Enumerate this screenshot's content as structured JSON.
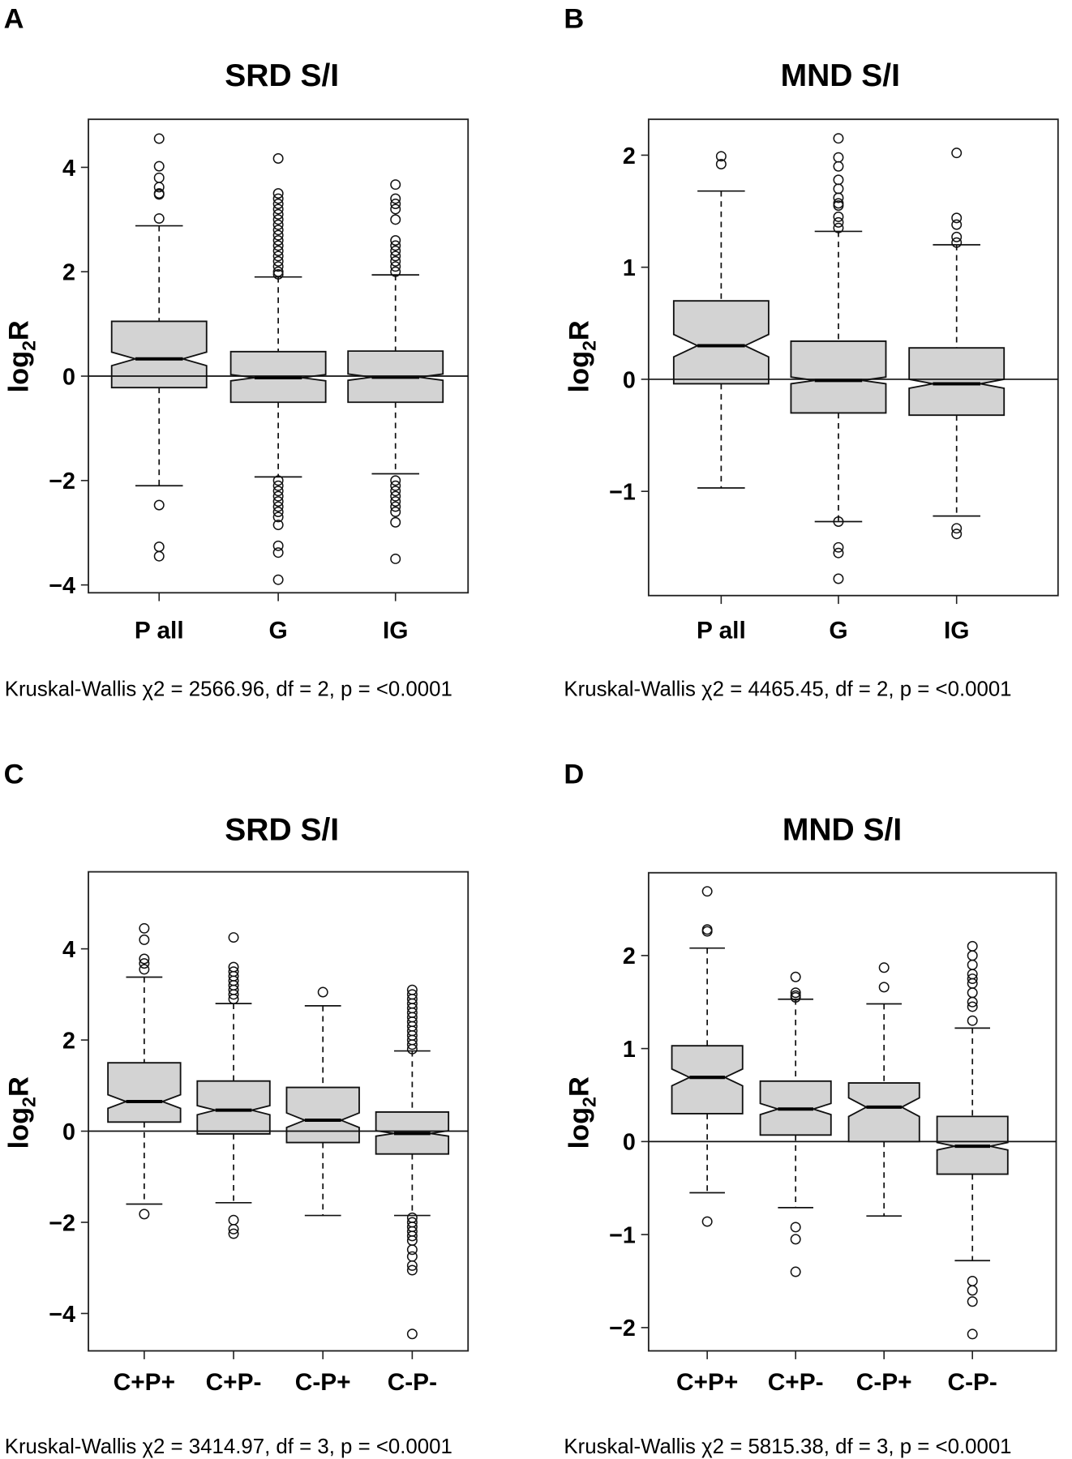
{
  "chart_data": [
    {
      "panel": "A",
      "type": "boxplot",
      "title": "SRD S/I",
      "ylabel": {
        "main": "log",
        "sub": "2",
        "end": "R"
      },
      "ylim": [
        -4.15,
        4.92
      ],
      "yticks": [
        4,
        2,
        0,
        -2,
        -4
      ],
      "ytick_labels": [
        "4",
        "2",
        "0",
        "−2",
        "−4"
      ],
      "hline": 0,
      "notched": true,
      "box_fill": "#d3d3d3",
      "stats": "Kruskal-Wallis  χ2 = 2566.96, df = 2, p = <0.0001",
      "categories": [
        "P all",
        "G",
        "IG"
      ],
      "boxes": [
        {
          "whisker_low": -2.1,
          "q1": -0.22,
          "median": 0.33,
          "q3": 1.05,
          "whisker_high": 2.88,
          "notch": [
            0.2,
            0.46
          ],
          "outliers": [
            4.55,
            4.02,
            3.8,
            3.62,
            3.5,
            3.48,
            3.02,
            -2.47,
            -3.27,
            -3.45
          ]
        },
        {
          "whisker_low": -1.93,
          "q1": -0.5,
          "median": -0.03,
          "q3": 0.47,
          "whisker_high": 1.9,
          "notch": [
            -0.09,
            0.03
          ],
          "outliers": [
            4.17,
            3.5,
            3.4,
            3.3,
            3.2,
            3.1,
            3.0,
            2.9,
            2.8,
            2.7,
            2.6,
            2.5,
            2.4,
            2.3,
            2.2,
            2.1,
            2.0,
            1.95,
            -2.0,
            -2.1,
            -2.2,
            -2.3,
            -2.4,
            -2.5,
            -2.6,
            -2.7,
            -2.85,
            -3.25,
            -3.38,
            -3.9
          ]
        },
        {
          "whisker_low": -1.87,
          "q1": -0.5,
          "median": -0.02,
          "q3": 0.48,
          "whisker_high": 1.94,
          "notch": [
            -0.08,
            0.04
          ],
          "outliers": [
            3.67,
            3.4,
            3.3,
            3.2,
            3.0,
            2.6,
            2.5,
            2.4,
            2.3,
            2.2,
            2.1,
            2.0,
            -2.0,
            -2.1,
            -2.2,
            -2.3,
            -2.4,
            -2.5,
            -2.6,
            -2.8,
            -3.5
          ]
        }
      ]
    },
    {
      "panel": "B",
      "type": "boxplot",
      "title": "MND S/I",
      "ylabel": {
        "main": "log",
        "sub": "2",
        "end": "R"
      },
      "ylim": [
        -1.93,
        2.32
      ],
      "yticks": [
        2,
        1,
        0,
        -1
      ],
      "ytick_labels": [
        "2",
        "1",
        "0",
        "−1"
      ],
      "hline": 0,
      "notched": true,
      "box_fill": "#d3d3d3",
      "stats": "Kruskal-Wallis  χ2 = 4465.45, df = 2, p = <0.0001",
      "categories": [
        "P all",
        "G",
        "IG"
      ],
      "boxes": [
        {
          "whisker_low": -0.97,
          "q1": -0.04,
          "median": 0.3,
          "q3": 0.7,
          "whisker_high": 1.68,
          "notch": [
            0.2,
            0.4
          ],
          "outliers": [
            1.99,
            1.92
          ]
        },
        {
          "whisker_low": -1.27,
          "q1": -0.3,
          "median": -0.01,
          "q3": 0.34,
          "whisker_high": 1.32,
          "notch": [
            -0.04,
            0.02
          ],
          "outliers": [
            2.15,
            1.98,
            1.9,
            1.78,
            1.7,
            1.62,
            1.57,
            1.55,
            1.45,
            1.4,
            1.35,
            -1.27,
            -1.5,
            -1.55,
            -1.78
          ]
        },
        {
          "whisker_low": -1.22,
          "q1": -0.32,
          "median": -0.04,
          "q3": 0.28,
          "whisker_high": 1.2,
          "notch": [
            -0.08,
            0.0
          ],
          "outliers": [
            2.02,
            1.44,
            1.38,
            1.27,
            1.22,
            -1.33,
            -1.38
          ]
        }
      ]
    },
    {
      "panel": "C",
      "type": "boxplot",
      "title": "SRD S/I",
      "ylabel": {
        "main": "log",
        "sub": "2",
        "end": "R"
      },
      "ylim": [
        -4.82,
        5.69
      ],
      "yticks": [
        4,
        2,
        0,
        -2,
        -4
      ],
      "ytick_labels": [
        "4",
        "2",
        "0",
        "−2",
        "−4"
      ],
      "hline": 0,
      "notched": true,
      "box_fill": "#d3d3d3",
      "stats": "Kruskal-Wallis χ2 = 3414.97, df = 3, p = <0.0001",
      "categories": [
        "C+P+",
        "C+P-",
        "C-P+",
        "C-P-"
      ],
      "boxes": [
        {
          "whisker_low": -1.6,
          "q1": 0.2,
          "median": 0.65,
          "q3": 1.5,
          "whisker_high": 3.38,
          "notch": [
            0.5,
            0.8
          ],
          "outliers": [
            4.45,
            4.2,
            3.78,
            3.68,
            3.55,
            -1.82
          ]
        },
        {
          "whisker_low": -1.57,
          "q1": -0.06,
          "median": 0.46,
          "q3": 1.1,
          "whisker_high": 2.8,
          "notch": [
            0.36,
            0.56
          ],
          "outliers": [
            4.25,
            3.6,
            3.5,
            3.4,
            3.3,
            3.2,
            3.1,
            3.0,
            2.9,
            -1.95,
            -2.15,
            -2.25
          ]
        },
        {
          "whisker_low": -1.85,
          "q1": -0.25,
          "median": 0.24,
          "q3": 0.96,
          "whisker_high": 2.75,
          "notch": [
            0.08,
            0.4
          ],
          "outliers": [
            3.05
          ]
        },
        {
          "whisker_low": -1.85,
          "q1": -0.5,
          "median": -0.05,
          "q3": 0.42,
          "whisker_high": 1.76,
          "notch": [
            -0.11,
            0.01
          ],
          "outliers": [
            3.1,
            3.0,
            2.9,
            2.8,
            2.7,
            2.6,
            2.5,
            2.4,
            2.3,
            2.2,
            2.1,
            2.0,
            1.9,
            1.8,
            -1.9,
            -2.0,
            -2.1,
            -2.2,
            -2.3,
            -2.4,
            -2.6,
            -2.75,
            -2.95,
            -3.05,
            -4.45
          ]
        }
      ]
    },
    {
      "panel": "D",
      "type": "boxplot",
      "title": "MND S/I",
      "ylabel": {
        "main": "log",
        "sub": "2",
        "end": "R"
      },
      "ylim": [
        -2.25,
        2.89
      ],
      "yticks": [
        2,
        1,
        0,
        -1,
        -2
      ],
      "ytick_labels": [
        "2",
        "1",
        "0",
        "−1",
        "−2"
      ],
      "hline": 0,
      "notched": true,
      "box_fill": "#d3d3d3",
      "stats": "Kruskal-Wallis χ2 = 5815.38, df = 3, p = <0.0001",
      "categories": [
        "C+P+",
        "C+P-",
        "C-P+",
        "C-P-"
      ],
      "boxes": [
        {
          "whisker_low": -0.55,
          "q1": 0.3,
          "median": 0.69,
          "q3": 1.03,
          "whisker_high": 2.08,
          "notch": [
            0.6,
            0.78
          ],
          "outliers": [
            2.69,
            2.28,
            2.26,
            -0.86
          ]
        },
        {
          "whisker_low": -0.71,
          "q1": 0.07,
          "median": 0.35,
          "q3": 0.65,
          "whisker_high": 1.53,
          "notch": [
            0.29,
            0.41
          ],
          "outliers": [
            1.77,
            1.6,
            1.57,
            1.55,
            -0.92,
            -1.05,
            -1.4
          ]
        },
        {
          "whisker_low": -0.8,
          "q1": 0.0,
          "median": 0.37,
          "q3": 0.63,
          "whisker_high": 1.48,
          "notch": [
            0.27,
            0.47
          ],
          "outliers": [
            1.87,
            1.66
          ]
        },
        {
          "whisker_low": -1.28,
          "q1": -0.35,
          "median": -0.05,
          "q3": 0.27,
          "whisker_high": 1.22,
          "notch": [
            -0.09,
            -0.01
          ],
          "outliers": [
            2.1,
            2.0,
            1.9,
            1.8,
            1.75,
            1.7,
            1.6,
            1.5,
            1.45,
            1.3,
            -1.5,
            -1.6,
            -1.72,
            -2.07
          ]
        }
      ]
    }
  ]
}
